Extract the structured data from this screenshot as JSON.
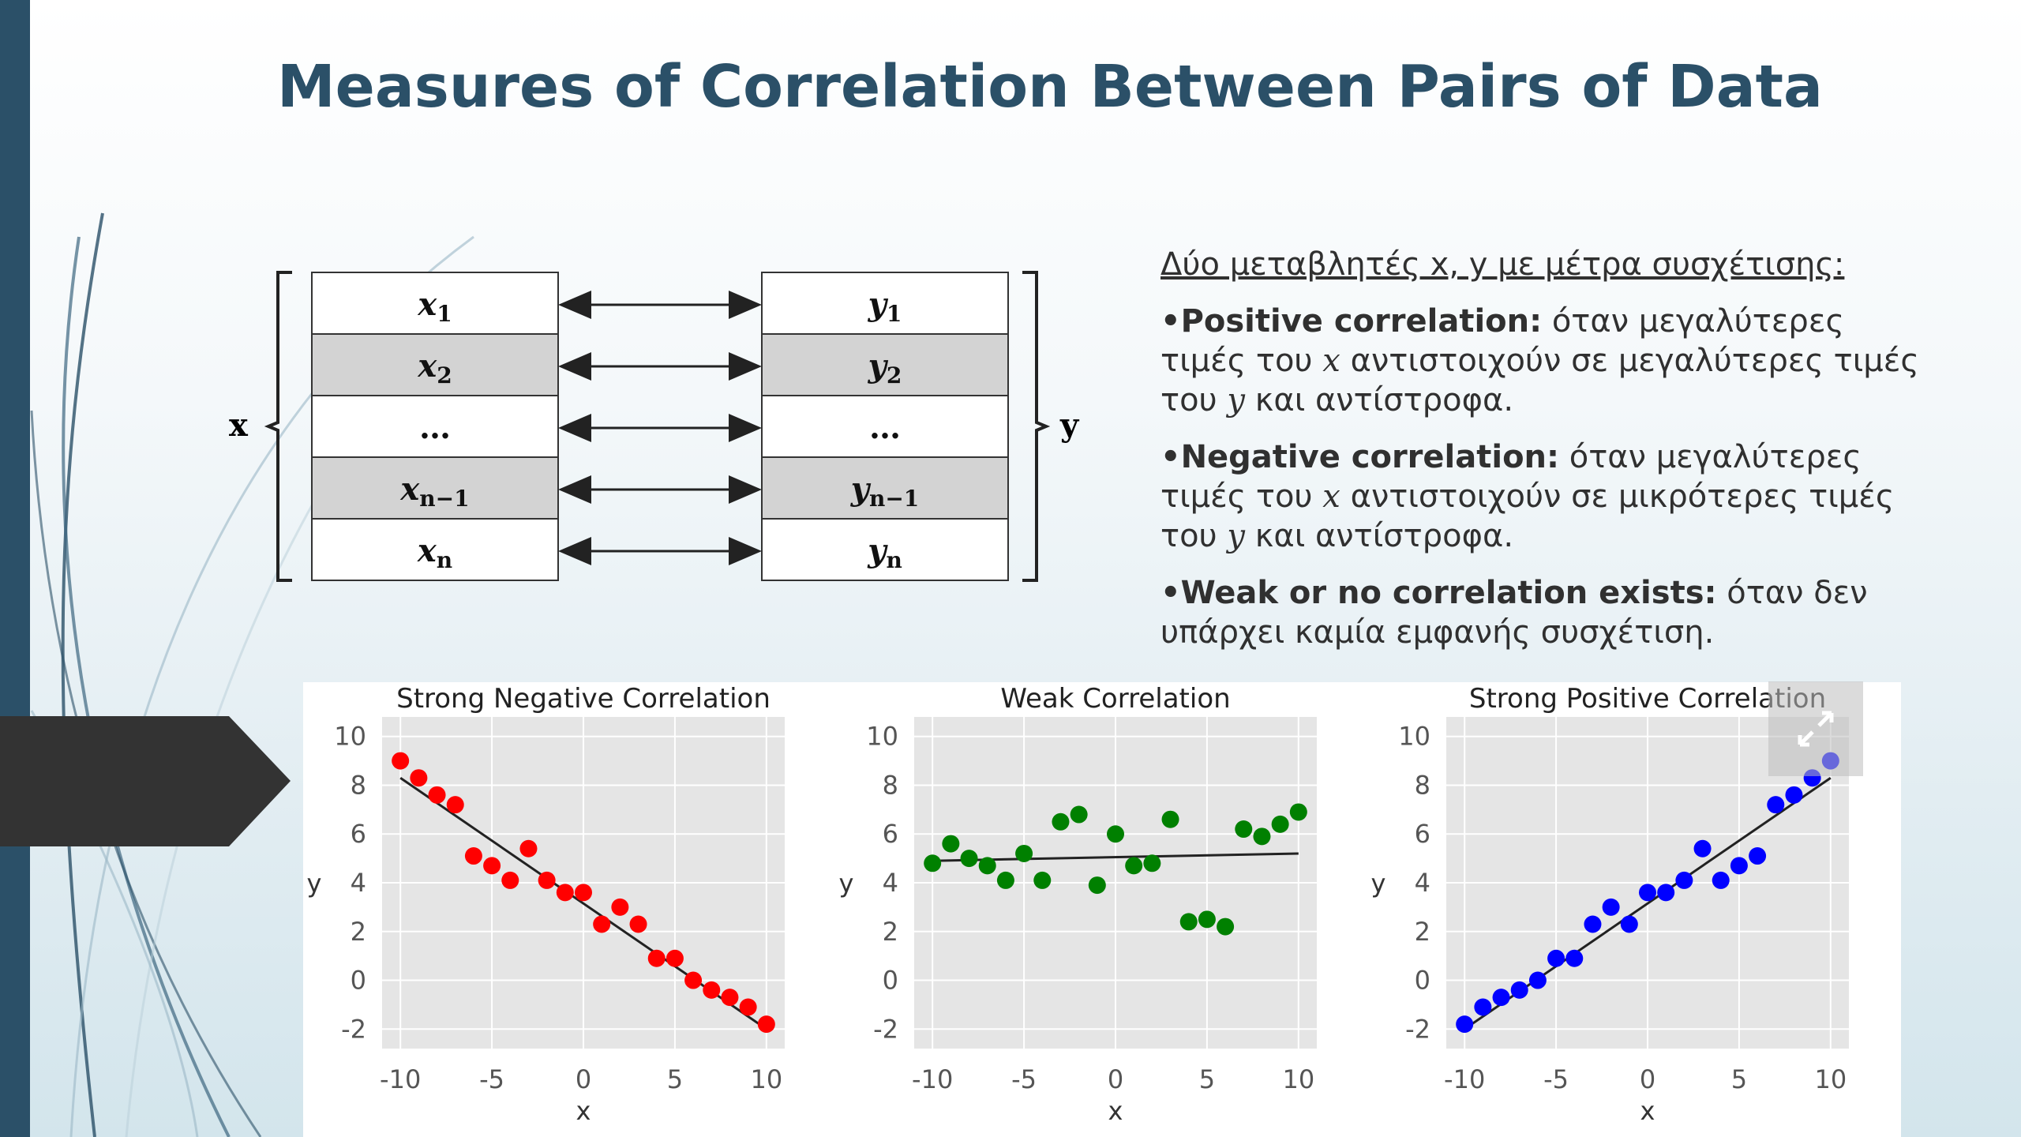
{
  "slide": {
    "title": "Measures of Correlation Between Pairs of Data",
    "accent_color": "#2b5068"
  },
  "diagram": {
    "x_label": "x",
    "y_label": "y",
    "x_cells": [
      "x_1",
      "x_2",
      "…",
      "x_{n−1}",
      "x_n"
    ],
    "y_cells": [
      "y_1",
      "y_2",
      "…",
      "y_{n−1}",
      "y_n"
    ],
    "shaded_rows": [
      1,
      3
    ]
  },
  "text": {
    "intro": "Δύο μεταβλητές x, y με μέτρα συσχέτισης:",
    "bullets": [
      {
        "term": "•Positive correlation:",
        "parts": [
          " όταν μεγαλύτερες τιμές του ",
          "x",
          " αντιστοιχούν σε μεγαλύτερες τιμές του ",
          "y",
          " και αντίστροφα."
        ]
      },
      {
        "term": "•Negative correlation:",
        "parts": [
          " όταν μεγαλύτερες τιμές του ",
          "x",
          " αντιστοιχούν σε μικρότερες τιμές του ",
          "y",
          " και αντίστροφα."
        ]
      },
      {
        "term": "•Weak or no correlation exists:",
        "parts": [
          " όταν δεν υπάρχει καμία εμφανής συσχέτιση."
        ]
      }
    ]
  },
  "expand_icon": "expand-icon",
  "chart_data": [
    {
      "type": "scatter",
      "title": "Strong Negative Correlation",
      "xlabel": "x",
      "ylabel": "y",
      "xlim": [
        -11,
        11
      ],
      "ylim": [
        -2.8,
        10.8
      ],
      "xticks": [
        "-10",
        "-5",
        "0",
        "5",
        "10"
      ],
      "yticks": [
        "10",
        "8",
        "6",
        "4",
        "2",
        "0",
        "-2"
      ],
      "grid": true,
      "color": "#ff0000",
      "fit_line": [
        [
          -10,
          8.3
        ],
        [
          10,
          -2.0
        ]
      ],
      "x": [
        -10,
        -9,
        -8,
        -7,
        -6,
        -5,
        -4,
        -3,
        -2,
        -1,
        0,
        1,
        2,
        3,
        4,
        5,
        6,
        7,
        8,
        9,
        10
      ],
      "y": [
        9.0,
        8.3,
        7.6,
        7.2,
        5.1,
        4.7,
        4.1,
        5.4,
        4.1,
        3.6,
        3.6,
        2.3,
        3.0,
        2.3,
        0.9,
        0.9,
        0.0,
        -0.4,
        -0.7,
        -1.1,
        -1.8
      ]
    },
    {
      "type": "scatter",
      "title": "Weak Correlation",
      "xlabel": "x",
      "ylabel": "y",
      "xlim": [
        -11,
        11
      ],
      "ylim": [
        -2.8,
        10.8
      ],
      "xticks": [
        "-10",
        "-5",
        "0",
        "5",
        "10"
      ],
      "yticks": [
        "10",
        "8",
        "6",
        "4",
        "2",
        "0",
        "-2"
      ],
      "grid": true,
      "color": "#008000",
      "fit_line": [
        [
          -10,
          4.9
        ],
        [
          10,
          5.2
        ]
      ],
      "x": [
        -10,
        -9,
        -8,
        -7,
        -6,
        -5,
        -4,
        -3,
        -2,
        -1,
        0,
        1,
        2,
        3,
        4,
        5,
        6,
        7,
        8,
        9,
        10
      ],
      "y": [
        4.8,
        5.6,
        5.0,
        4.7,
        4.1,
        5.2,
        4.1,
        6.5,
        6.8,
        3.9,
        6.0,
        4.7,
        4.8,
        6.6,
        2.4,
        2.5,
        2.2,
        6.2,
        5.9,
        6.4,
        6.9
      ]
    },
    {
      "type": "scatter",
      "title": "Strong Positive Correlation",
      "xlabel": "x",
      "ylabel": "y",
      "xlim": [
        -11,
        11
      ],
      "ylim": [
        -2.8,
        10.8
      ],
      "xticks": [
        "-10",
        "-5",
        "0",
        "5",
        "10"
      ],
      "yticks": [
        "10",
        "8",
        "6",
        "4",
        "2",
        "0",
        "-2"
      ],
      "grid": true,
      "color": "#0000ff",
      "fit_line": [
        [
          -10,
          -2.0
        ],
        [
          10,
          8.3
        ]
      ],
      "x": [
        -10,
        -9,
        -8,
        -7,
        -6,
        -5,
        -4,
        -3,
        -2,
        -1,
        0,
        1,
        2,
        3,
        4,
        5,
        6,
        7,
        8,
        9,
        10
      ],
      "y": [
        -1.8,
        -1.1,
        -0.7,
        -0.4,
        0.0,
        0.9,
        0.9,
        2.3,
        3.0,
        2.3,
        3.6,
        3.6,
        4.1,
        5.4,
        4.1,
        4.7,
        5.1,
        7.2,
        7.6,
        8.3,
        9.0
      ]
    }
  ]
}
